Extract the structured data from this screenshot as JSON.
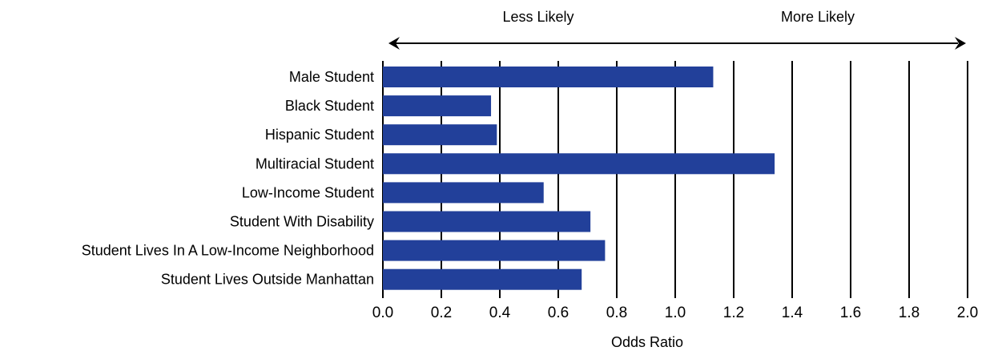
{
  "chart_data": {
    "type": "bar",
    "orientation": "horizontal",
    "categories": [
      "Male Student",
      "Black Student",
      "Hispanic Student",
      "Multiracial Student",
      "Low-Income Student",
      "Student With Disability",
      "Student Lives In A Low-Income Neighborhood",
      "Student Lives Outside Manhattan"
    ],
    "values": [
      1.13,
      0.37,
      0.39,
      1.34,
      0.55,
      0.71,
      0.76,
      0.68
    ],
    "xlabel": "Odds Ratio",
    "ylabel": "",
    "xlim": [
      0.0,
      2.0
    ],
    "xticks": [
      "0.0",
      "0.2",
      "0.4",
      "0.6",
      "0.8",
      "1.0",
      "1.2",
      "1.4",
      "1.6",
      "1.8",
      "2.0"
    ],
    "direction_labels": {
      "left": "Less Likely",
      "right": "More Likely"
    },
    "grid": "vertical",
    "bar_color": "#22409a",
    "grid_color": "#000000"
  }
}
